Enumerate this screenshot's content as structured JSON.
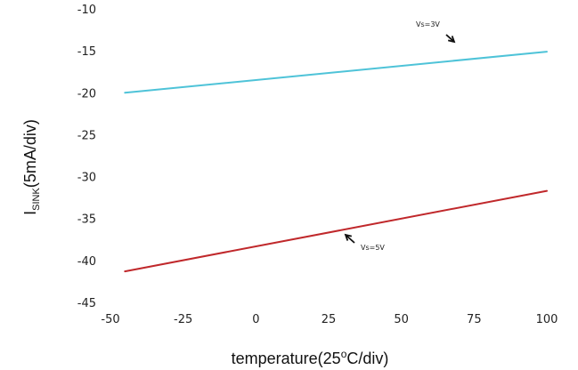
{
  "chart_data": {
    "type": "line",
    "title": "",
    "xlabel": {
      "main": "temperature(25",
      "sup": "o",
      "rest": "C/div)"
    },
    "ylabel": {
      "main": "I",
      "sub": "SINK",
      "rest": "(5mA/div)"
    },
    "xlim": [
      -50,
      100
    ],
    "ylim": [
      -45,
      -10
    ],
    "xticks": [
      -50,
      -25,
      0,
      25,
      50,
      75,
      100
    ],
    "yticks": [
      -10,
      -15,
      -20,
      -25,
      -30,
      -35,
      -40,
      -45
    ],
    "xtick_labels": [
      "-50",
      "-25",
      "0",
      "25",
      "50",
      "75",
      "100"
    ],
    "ytick_labels": [
      "-10",
      "-15",
      "-20",
      "-25",
      "-30",
      "-35",
      "-40",
      "-45"
    ],
    "grid": false,
    "series": [
      {
        "label": "Vs=3V",
        "color": "#4ec3d8",
        "x": [
          -45,
          100
        ],
        "y": [
          -20.0,
          -15.1
        ]
      },
      {
        "label": "Vs=5V",
        "color": "#c0282b",
        "x": [
          -45,
          100
        ],
        "y": [
          -41.3,
          -31.7
        ]
      }
    ],
    "annotations": [
      {
        "text": "Vs=3V",
        "series": 0,
        "arrow": "down-right"
      },
      {
        "text": "Vs=5V",
        "series": 1,
        "arrow": "up-left"
      }
    ]
  }
}
